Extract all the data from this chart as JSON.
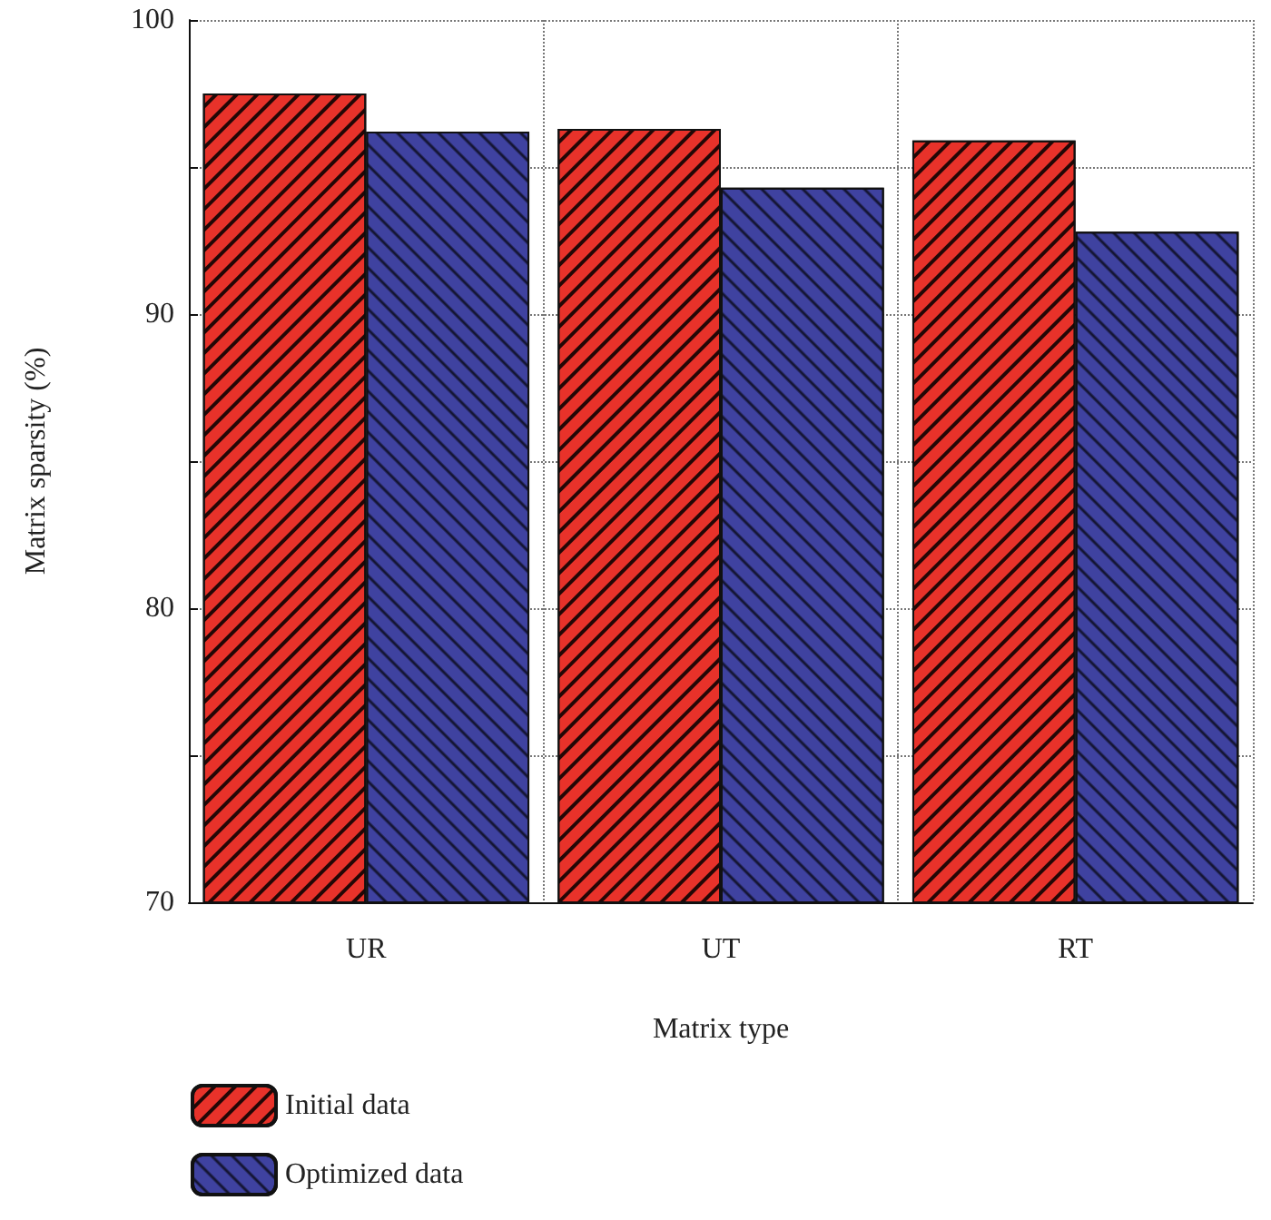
{
  "chart_data": {
    "type": "bar",
    "xlabel": "Matrix type",
    "ylabel": "Matrix sparsity (%)",
    "categories": [
      "UR",
      "UT",
      "RT"
    ],
    "series": [
      {
        "name": "Initial data",
        "color": "#e8322a",
        "values": [
          97.5,
          96.3,
          95.9
        ]
      },
      {
        "name": "Optimized data",
        "color": "#3f42a0",
        "values": [
          96.2,
          94.3,
          92.8
        ]
      }
    ],
    "ylim": [
      70,
      100
    ],
    "yticks": [
      70,
      {
        "value": 75,
        "label": null
      },
      80,
      {
        "value": 85,
        "label": null
      },
      90,
      {
        "value": 95,
        "label": null
      },
      100
    ],
    "grid": true,
    "legend": "bottom left"
  }
}
